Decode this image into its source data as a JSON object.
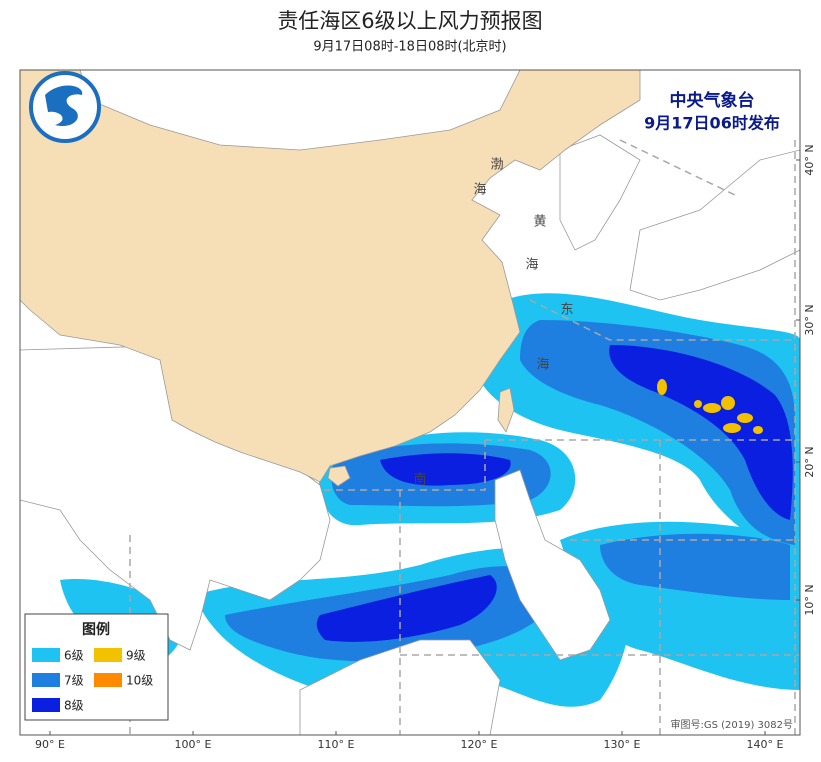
{
  "header": {
    "title": "责任海区6级以上风力预报图",
    "subtitle": "9月17日08时-18日08时(北京时)"
  },
  "issuer": {
    "name": "中央气象台",
    "time": "9月17日06时发布"
  },
  "legend": {
    "title": "图例",
    "items": [
      {
        "label": "6级",
        "color": "#1ec3f2"
      },
      {
        "label": "9级",
        "color": "#f2c200"
      },
      {
        "label": "7级",
        "color": "#1f7fe0"
      },
      {
        "label": "10级",
        "color": "#ff8a00"
      },
      {
        "label": "8级",
        "color": "#0b1fe0"
      }
    ]
  },
  "axes": {
    "lon": [
      "90° E",
      "100° E",
      "110° E",
      "120° E",
      "130° E",
      "140° E"
    ],
    "lat": [
      "40° N",
      "30° N",
      "20° N",
      "10° N"
    ]
  },
  "sea_labels": [
    "渤",
    "海",
    "黄",
    "海",
    "东",
    "海",
    "南"
  ],
  "approval": "审图号:GS (2019) 3082号"
}
